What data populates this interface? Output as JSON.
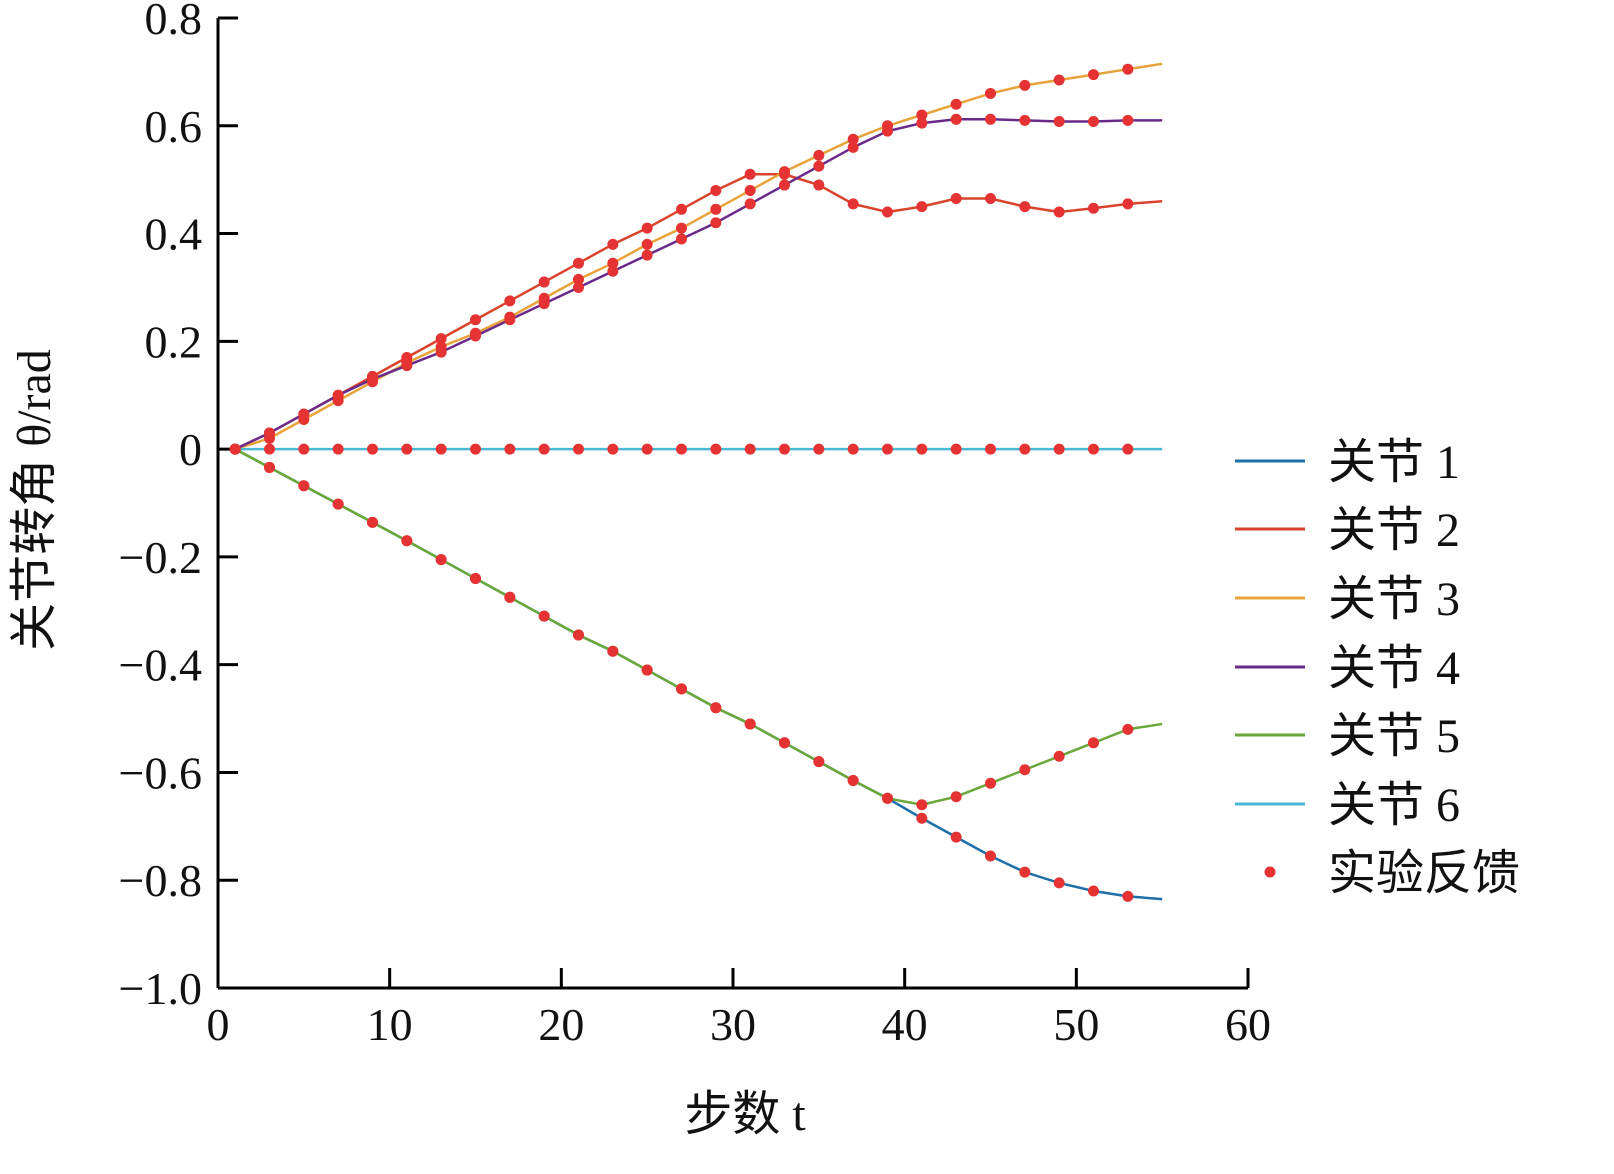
{
  "chart_data": {
    "type": "line",
    "title": "",
    "xlabel": "步数 t",
    "ylabel": "关节转角 θ/rad",
    "xlim": [
      0,
      60
    ],
    "ylim": [
      -1.0,
      0.8
    ],
    "xticks": [
      "0",
      "10",
      "20",
      "30",
      "40",
      "50",
      "60"
    ],
    "yticks": [
      "0.8",
      "0.6",
      "0.4",
      "0.2",
      "0",
      "−0.2",
      "−0.4",
      "−0.6",
      "−0.8",
      "−1.0"
    ],
    "grid": false,
    "legend_position": "right",
    "x": [
      1,
      3,
      5,
      7,
      9,
      11,
      13,
      15,
      17,
      19,
      21,
      23,
      25,
      27,
      29,
      31,
      33,
      35,
      37,
      39,
      41,
      43,
      45,
      47,
      49,
      51,
      53,
      55
    ],
    "series": [
      {
        "name": "关节 1",
        "color": "#1f6fa8",
        "values": [
          0,
          -0.034,
          -0.068,
          -0.102,
          -0.136,
          -0.17,
          -0.205,
          -0.24,
          -0.275,
          -0.31,
          -0.345,
          -0.375,
          -0.41,
          -0.445,
          -0.48,
          -0.51,
          -0.545,
          -0.58,
          -0.615,
          -0.648,
          -0.685,
          -0.72,
          -0.755,
          -0.785,
          -0.805,
          -0.82,
          -0.83,
          -0.835
        ]
      },
      {
        "name": "关节 2",
        "color": "#d9432b",
        "values": [
          0,
          0.03,
          0.065,
          0.1,
          0.135,
          0.17,
          0.205,
          0.24,
          0.275,
          0.31,
          0.345,
          0.38,
          0.41,
          0.445,
          0.48,
          0.51,
          0.51,
          0.49,
          0.455,
          0.44,
          0.45,
          0.465,
          0.465,
          0.45,
          0.44,
          0.447,
          0.455,
          0.46
        ]
      },
      {
        "name": "关节 3",
        "color": "#e8a33a",
        "values": [
          0,
          0.02,
          0.055,
          0.09,
          0.125,
          0.16,
          0.19,
          0.215,
          0.245,
          0.28,
          0.315,
          0.345,
          0.38,
          0.41,
          0.445,
          0.48,
          0.515,
          0.545,
          0.575,
          0.6,
          0.62,
          0.64,
          0.66,
          0.675,
          0.685,
          0.695,
          0.705,
          0.715
        ]
      },
      {
        "name": "关节 4",
        "color": "#6a2a8a",
        "values": [
          0,
          0.03,
          0.065,
          0.1,
          0.13,
          0.155,
          0.18,
          0.21,
          0.24,
          0.27,
          0.3,
          0.33,
          0.36,
          0.39,
          0.42,
          0.455,
          0.49,
          0.525,
          0.56,
          0.59,
          0.605,
          0.612,
          0.612,
          0.61,
          0.608,
          0.608,
          0.61,
          0.61
        ]
      },
      {
        "name": "关节 5",
        "color": "#6aa83a",
        "values": [
          0,
          -0.034,
          -0.068,
          -0.102,
          -0.136,
          -0.17,
          -0.205,
          -0.24,
          -0.275,
          -0.31,
          -0.345,
          -0.375,
          -0.41,
          -0.445,
          -0.48,
          -0.51,
          -0.545,
          -0.58,
          -0.615,
          -0.648,
          -0.66,
          -0.645,
          -0.62,
          -0.595,
          -0.57,
          -0.545,
          -0.52,
          -0.51
        ]
      },
      {
        "name": "关节 6",
        "color": "#4cb8d8",
        "values": [
          0,
          0,
          0,
          0,
          0,
          0,
          0,
          0,
          0,
          0,
          0,
          0,
          0,
          0,
          0,
          0,
          0,
          0,
          0,
          0,
          0,
          0,
          0,
          0,
          0,
          0,
          0,
          0
        ]
      }
    ],
    "markers": {
      "name": "实验反馈",
      "color": "#e53333",
      "x_max": 53
    }
  }
}
